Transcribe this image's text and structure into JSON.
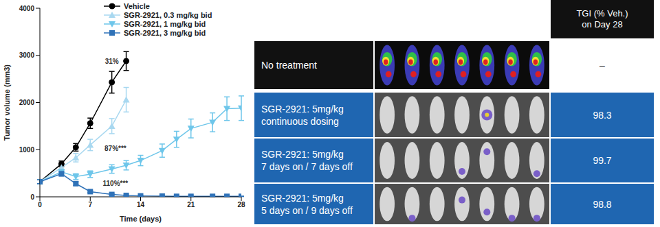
{
  "chart_data": {
    "type": "line",
    "x_label": "Time (days)",
    "y_label": "Tumor volume (mm3)",
    "xlim": [
      0,
      28
    ],
    "xticks": [
      0,
      7,
      14,
      21,
      28
    ],
    "ylim": [
      0,
      4000
    ],
    "yticks": [
      0,
      1000,
      2000,
      3000,
      4000
    ],
    "grid": false,
    "legend": "upper left",
    "series": [
      {
        "name": "Vehicle",
        "color": "#000000",
        "marker": "circle",
        "x": [
          0,
          3,
          5,
          7,
          10,
          12
        ],
        "values": [
          320,
          700,
          1050,
          1560,
          2430,
          2880
        ],
        "errors": [
          40,
          60,
          80,
          110,
          230,
          200
        ]
      },
      {
        "name": "SGR-2921, 0.3 mg/kg bid",
        "color": "#a8d8f0",
        "marker": "triangle",
        "x": [
          0,
          3,
          5,
          7,
          10,
          12
        ],
        "values": [
          320,
          620,
          830,
          1100,
          1500,
          2060
        ],
        "errors": [
          40,
          60,
          90,
          120,
          160,
          260
        ]
      },
      {
        "name": "SGR-2921, 1 mg/kg bid",
        "color": "#6ec6ea",
        "marker": "triangle-down",
        "x": [
          0,
          3,
          5,
          7,
          10,
          12,
          14,
          17,
          19,
          21,
          24,
          26,
          28
        ],
        "values": [
          320,
          530,
          430,
          480,
          590,
          670,
          770,
          980,
          1220,
          1450,
          1580,
          1870,
          1880
        ],
        "errors": [
          40,
          50,
          60,
          70,
          90,
          100,
          110,
          140,
          170,
          200,
          200,
          250,
          260
        ]
      },
      {
        "name": "SGR-2921, 3 mg/kg bid",
        "color": "#2f72b8",
        "marker": "square",
        "x": [
          0,
          3,
          5,
          7,
          10,
          12,
          14,
          17,
          19,
          21,
          24,
          26,
          28
        ],
        "values": [
          320,
          490,
          280,
          110,
          50,
          30,
          20,
          15,
          10,
          10,
          10,
          10,
          10
        ],
        "errors": [
          40,
          50,
          40,
          20,
          10,
          8,
          5,
          5,
          4,
          4,
          4,
          4,
          4
        ]
      }
    ],
    "annotations": [
      {
        "text": "31%",
        "x": 10,
        "y": 2880
      },
      {
        "text": "87%***",
        "x": 10.5,
        "y": 1030
      },
      {
        "text": "110%***",
        "x": 10.5,
        "y": 280
      }
    ]
  },
  "table": {
    "header": "TGI (% Veh.)\non Day 28",
    "rows": [
      {
        "label": "No treatment",
        "tgi": "–"
      },
      {
        "label": "SGR-2921: 5mg/kg\ncontinuous dosing",
        "tgi": 98.3
      },
      {
        "label": "SGR-2921: 5mg/kg\n7 days on / 7 days off",
        "tgi": 99.7
      },
      {
        "label": "SGR-2921: 5mg/kg\n5 days on / 9 days off",
        "tgi": 98.8
      }
    ]
  }
}
